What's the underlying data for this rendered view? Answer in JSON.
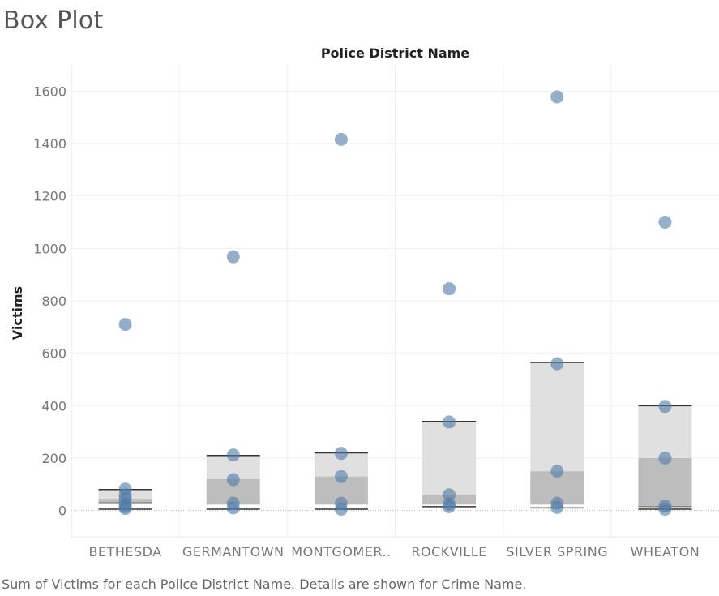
{
  "sheet": {
    "title": "Box Plot",
    "caption": "Sum of Victims for each Police District Name.  Details are shown for Crime Name."
  },
  "chart_data": {
    "type": "box",
    "column_header": "Police District Name",
    "ylabel": "Victims",
    "ylim": [
      -100,
      1700
    ],
    "yticks": [
      0,
      200,
      400,
      600,
      800,
      1000,
      1200,
      1400,
      1600
    ],
    "grid": true,
    "categories": [
      {
        "label": "BETHESDA",
        "lower_whisker": 5,
        "q1": 30,
        "median": 45,
        "q3": 80,
        "upper_whisker": 80,
        "points": [
          710,
          82,
          60,
          45,
          25,
          15,
          8
        ]
      },
      {
        "label": "GERMANTOWN",
        "lower_whisker": 5,
        "q1": 25,
        "median": 120,
        "q3": 210,
        "upper_whisker": 210,
        "points": [
          968,
          212,
          118,
          28,
          10
        ]
      },
      {
        "label": "MONTGOMER..",
        "lower_whisker": 5,
        "q1": 25,
        "median": 130,
        "q3": 220,
        "upper_whisker": 220,
        "points": [
          1416,
          218,
          130,
          28,
          5
        ]
      },
      {
        "label": "ROCKVILLE",
        "lower_whisker": 15,
        "q1": 25,
        "median": 60,
        "q3": 340,
        "upper_whisker": 340,
        "points": [
          846,
          338,
          60,
          25,
          15
        ]
      },
      {
        "label": "SILVER SPRING",
        "lower_whisker": 10,
        "q1": 25,
        "median": 150,
        "q3": 565,
        "upper_whisker": 565,
        "points": [
          1578,
          560,
          150,
          28,
          12
        ]
      },
      {
        "label": "WHEATON",
        "lower_whisker": 5,
        "q1": 15,
        "median": 200,
        "q3": 400,
        "upper_whisker": 400,
        "points": [
          1100,
          397,
          200,
          18,
          5
        ]
      }
    ],
    "colors": {
      "point": "#4e79a7",
      "box_upper": "#e0e0e0",
      "box_lower": "#bdbdbd",
      "whisker": "#333333",
      "grid": "#eeeeee",
      "zero_line": "#bbbbbb",
      "tick_text": "#777777",
      "axis_label": "#222222"
    }
  }
}
